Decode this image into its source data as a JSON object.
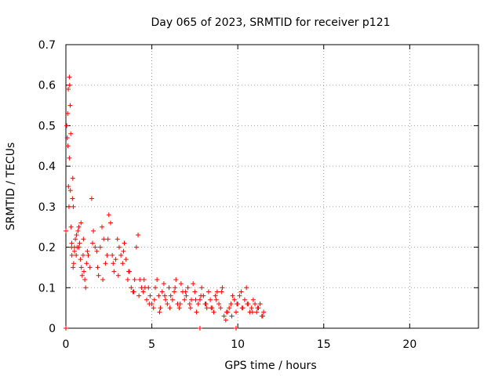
{
  "chart_data": {
    "type": "scatter",
    "title": "Day 065 of 2023, SRMTID for receiver p121",
    "xlabel": "GPS time / hours",
    "ylabel": "SRMTID / TECUs",
    "xlim": [
      0,
      24
    ],
    "ylim": [
      0,
      0.7
    ],
    "xticks": [
      0,
      5,
      10,
      15,
      20
    ],
    "yticks": [
      0,
      0.1,
      0.2,
      0.3,
      0.4,
      0.5,
      0.6,
      0.7
    ],
    "xtick_labels": [
      "0",
      "5",
      "10",
      "15",
      "20"
    ],
    "ytick_labels": [
      "0",
      "0.1",
      "0.2",
      "0.3",
      "0.4",
      "0.5",
      "0.6",
      "0.7"
    ],
    "grid": true,
    "legend": "none",
    "marker": "+",
    "color": "#ff0000",
    "series": [
      {
        "name": "SRMTID",
        "x": [
          0.0,
          0.05,
          0.1,
          0.12,
          0.15,
          0.18,
          0.2,
          0.22,
          0.25,
          0.28,
          0.3,
          0.33,
          0.35,
          0.38,
          0.4,
          0.43,
          0.45,
          0.5,
          0.55,
          0.6,
          0.65,
          0.7,
          0.75,
          0.8,
          0.85,
          0.9,
          0.95,
          1.0,
          1.05,
          1.1,
          1.15,
          1.2,
          1.3,
          1.4,
          1.5,
          1.6,
          1.7,
          1.8,
          1.9,
          2.0,
          2.1,
          2.2,
          2.3,
          2.4,
          2.5,
          2.6,
          2.7,
          2.8,
          2.9,
          3.0,
          3.1,
          3.2,
          3.3,
          3.4,
          3.5,
          3.6,
          3.7,
          3.8,
          3.9,
          4.0,
          4.1,
          4.2,
          4.3,
          4.4,
          4.5,
          4.6,
          4.7,
          4.8,
          4.9,
          5.0,
          5.1,
          5.2,
          5.3,
          5.4,
          5.5,
          5.6,
          5.7,
          5.8,
          5.9,
          6.0,
          6.1,
          6.2,
          6.3,
          6.4,
          6.5,
          6.6,
          6.7,
          6.8,
          6.9,
          7.0,
          7.1,
          7.2,
          7.3,
          7.4,
          7.5,
          7.6,
          7.7,
          7.8,
          7.9,
          8.0,
          8.1,
          8.2,
          8.3,
          8.4,
          8.5,
          8.6,
          8.7,
          8.8,
          8.9,
          9.0,
          9.1,
          9.2,
          9.3,
          9.4,
          9.5,
          9.6,
          9.7,
          9.8,
          9.9,
          10.0,
          10.1,
          10.2,
          10.3,
          10.4,
          10.5,
          10.6,
          10.7,
          10.8,
          10.9,
          11.0,
          11.1,
          11.2,
          11.3,
          11.4,
          11.5,
          0.08,
          0.14,
          0.2,
          0.26,
          0.34,
          0.42,
          0.5,
          0.62,
          0.75,
          0.88,
          1.02,
          1.25,
          1.55,
          1.85,
          2.15,
          2.45,
          2.75,
          3.05,
          3.35,
          3.65,
          3.95,
          4.25,
          4.55,
          4.85,
          5.15,
          5.45,
          5.75,
          6.05,
          6.35,
          6.65,
          6.95,
          7.25,
          7.55,
          7.85,
          8.15,
          8.45,
          8.75,
          9.05,
          9.35,
          9.65,
          9.95,
          10.25,
          10.55,
          10.85,
          11.15,
          11.45,
          0.0,
          7.8,
          9.9
        ],
        "y": [
          0.24,
          0.5,
          0.53,
          0.45,
          0.35,
          0.3,
          0.62,
          0.6,
          0.55,
          0.48,
          0.25,
          0.2,
          0.18,
          0.32,
          0.37,
          0.3,
          0.16,
          0.2,
          0.22,
          0.18,
          0.2,
          0.24,
          0.25,
          0.21,
          0.17,
          0.15,
          0.13,
          0.18,
          0.14,
          0.12,
          0.1,
          0.16,
          0.18,
          0.15,
          0.32,
          0.24,
          0.2,
          0.19,
          0.13,
          0.2,
          0.25,
          0.22,
          0.16,
          0.18,
          0.28,
          0.26,
          0.18,
          0.14,
          0.17,
          0.22,
          0.2,
          0.18,
          0.16,
          0.21,
          0.17,
          0.12,
          0.14,
          0.1,
          0.09,
          0.12,
          0.2,
          0.23,
          0.12,
          0.1,
          0.09,
          0.1,
          0.07,
          0.1,
          0.08,
          0.06,
          0.05,
          0.1,
          0.12,
          0.08,
          0.05,
          0.09,
          0.11,
          0.07,
          0.06,
          0.1,
          0.08,
          0.07,
          0.09,
          0.12,
          0.06,
          0.05,
          0.11,
          0.09,
          0.07,
          0.08,
          0.1,
          0.06,
          0.07,
          0.11,
          0.09,
          0.04,
          0.06,
          0.07,
          0.1,
          0.08,
          0.06,
          0.05,
          0.09,
          0.07,
          0.05,
          0.04,
          0.08,
          0.09,
          0.06,
          0.05,
          0.1,
          0.03,
          0.02,
          0.04,
          0.05,
          0.06,
          0.08,
          0.07,
          0.04,
          0.06,
          0.08,
          0.09,
          0.05,
          0.07,
          0.1,
          0.06,
          0.04,
          0.05,
          0.07,
          0.06,
          0.04,
          0.05,
          0.06,
          0.03,
          0.04,
          0.47,
          0.59,
          0.42,
          0.34,
          0.21,
          0.15,
          0.19,
          0.23,
          0.2,
          0.26,
          0.22,
          0.19,
          0.21,
          0.15,
          0.12,
          0.22,
          0.16,
          0.13,
          0.19,
          0.14,
          0.09,
          0.08,
          0.12,
          0.06,
          0.07,
          0.04,
          0.08,
          0.05,
          0.1,
          0.06,
          0.09,
          0.05,
          0.07,
          0.08,
          0.06,
          0.05,
          0.07,
          0.09,
          0.04,
          0.03,
          0.06,
          0.05,
          0.06,
          0.04,
          0.05,
          0.03,
          0.0,
          0.0,
          0.0
        ]
      }
    ]
  }
}
